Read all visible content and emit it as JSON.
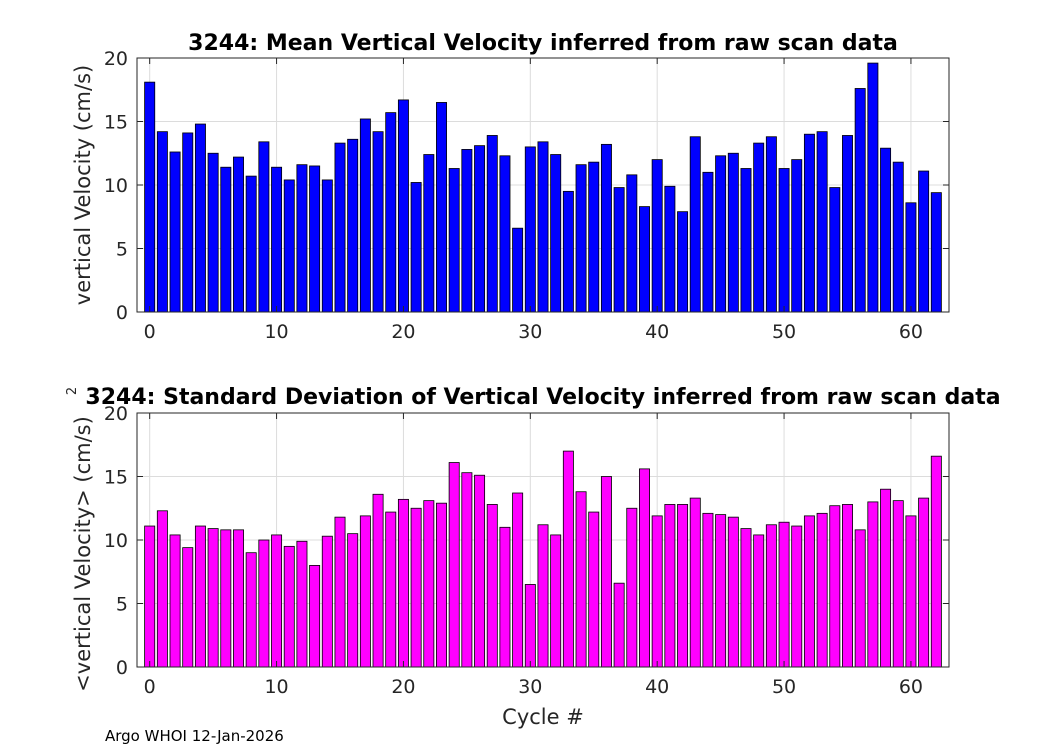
{
  "chart_data": [
    {
      "type": "bar",
      "title": "3244: Mean Vertical Velocity inferred from raw scan data",
      "xlabel": "",
      "ylabel": "vertical Velocity (cm/s)",
      "xlim": [
        -1,
        63
      ],
      "ylim": [
        0,
        20
      ],
      "xticks": [
        0,
        10,
        20,
        30,
        40,
        50,
        60
      ],
      "yticks": [
        0,
        5,
        10,
        15,
        20
      ],
      "grid": true,
      "bar_color": "#0000ff",
      "x": [
        0,
        1,
        2,
        3,
        4,
        5,
        6,
        7,
        8,
        9,
        10,
        11,
        12,
        13,
        14,
        15,
        16,
        17,
        18,
        19,
        20,
        21,
        22,
        23,
        24,
        25,
        26,
        27,
        28,
        29,
        30,
        31,
        32,
        33,
        34,
        35,
        36,
        37,
        38,
        39,
        40,
        41,
        42,
        43,
        44,
        45,
        46,
        47,
        48,
        49,
        50,
        51,
        52,
        53,
        54,
        55,
        56,
        57,
        58,
        59,
        60,
        61,
        62
      ],
      "values": [
        18.1,
        14.2,
        12.6,
        14.1,
        14.8,
        12.5,
        11.4,
        12.2,
        10.7,
        13.4,
        11.4,
        10.4,
        11.6,
        11.5,
        10.4,
        13.3,
        13.6,
        15.2,
        14.2,
        15.7,
        16.7,
        10.2,
        12.4,
        16.5,
        11.3,
        12.8,
        13.1,
        13.9,
        12.3,
        6.6,
        13.0,
        13.4,
        12.4,
        9.5,
        11.6,
        11.8,
        13.2,
        9.8,
        10.8,
        8.3,
        12.0,
        9.9,
        7.9,
        13.8,
        11.0,
        12.3,
        12.5,
        11.3,
        13.3,
        13.8,
        11.3,
        12.0,
        14.0,
        14.2,
        9.8,
        13.9,
        17.6,
        19.6,
        12.9,
        11.8,
        8.6,
        11.1,
        9.4
      ]
    },
    {
      "type": "bar",
      "title": "3244: Standard Deviation of Vertical Velocity inferred from raw scan data",
      "xlabel": "Cycle #",
      "ylabel": "<vertical Velocity> (cm/s)",
      "ylabel_superscript": "2",
      "xlim": [
        -1,
        63
      ],
      "ylim": [
        0,
        20
      ],
      "xticks": [
        0,
        10,
        20,
        30,
        40,
        50,
        60
      ],
      "yticks": [
        0,
        5,
        10,
        15,
        20
      ],
      "grid": true,
      "bar_color": "#ff00ff",
      "x": [
        0,
        1,
        2,
        3,
        4,
        5,
        6,
        7,
        8,
        9,
        10,
        11,
        12,
        13,
        14,
        15,
        16,
        17,
        18,
        19,
        20,
        21,
        22,
        23,
        24,
        25,
        26,
        27,
        28,
        29,
        30,
        31,
        32,
        33,
        34,
        35,
        36,
        37,
        38,
        39,
        40,
        41,
        42,
        43,
        44,
        45,
        46,
        47,
        48,
        49,
        50,
        51,
        52,
        53,
        54,
        55,
        56,
        57,
        58,
        59,
        60,
        61,
        62
      ],
      "values": [
        11.1,
        12.3,
        10.4,
        9.4,
        11.1,
        10.9,
        10.8,
        10.8,
        9.0,
        10.0,
        10.4,
        9.5,
        9.9,
        8.0,
        10.3,
        11.8,
        10.5,
        11.9,
        13.6,
        12.2,
        13.2,
        12.5,
        13.1,
        12.9,
        16.1,
        15.3,
        15.1,
        12.8,
        11.0,
        13.7,
        6.5,
        11.2,
        10.4,
        17.0,
        13.8,
        12.2,
        15.0,
        6.6,
        12.5,
        15.6,
        11.9,
        12.8,
        12.8,
        13.3,
        12.1,
        12.0,
        11.8,
        10.9,
        10.4,
        11.2,
        11.4,
        11.1,
        11.9,
        12.1,
        12.7,
        12.8,
        10.8,
        13.0,
        14.0,
        13.1,
        11.9,
        13.3,
        16.6
      ]
    }
  ],
  "footer": "Argo WHOI 12-Jan-2026"
}
